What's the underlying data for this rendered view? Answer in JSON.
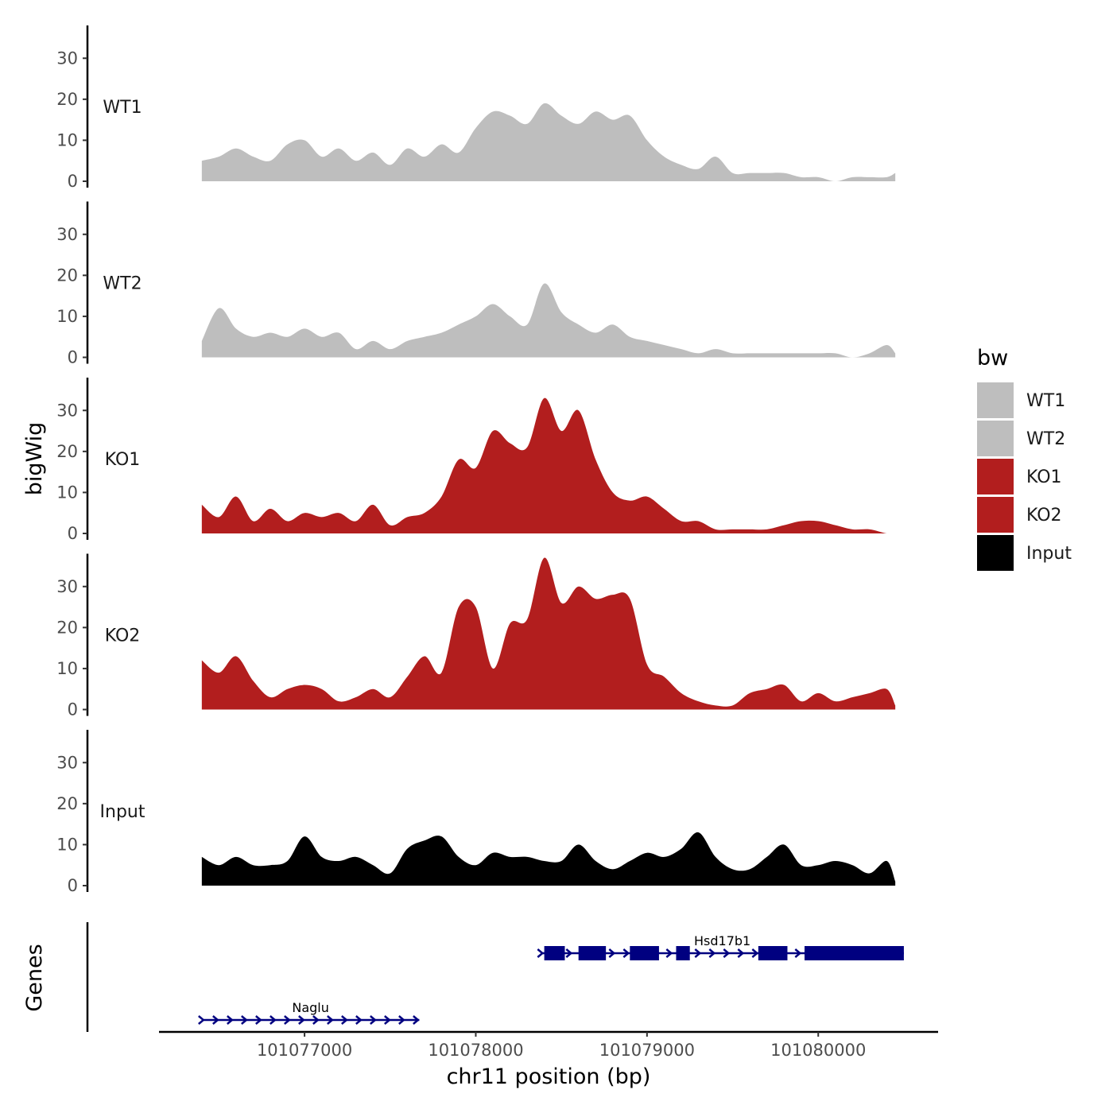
{
  "chart_data": {
    "type": "area",
    "title": "",
    "xlabel": "chr11 position (bp)",
    "ylabel": "bigWig",
    "genes_label": "Genes",
    "xlim": [
      101076150,
      101080700
    ],
    "ylim": [
      0,
      38
    ],
    "x_ticks": [
      101077000,
      101078000,
      101079000,
      101080000
    ],
    "y_ticks": [
      0,
      10,
      20,
      30
    ],
    "legend": {
      "title": "bw",
      "entries": [
        {
          "name": "WT1",
          "color": "#bebebe"
        },
        {
          "name": "WT2",
          "color": "#bebebe"
        },
        {
          "name": "KO1",
          "color": "#b21e1e"
        },
        {
          "name": "KO2",
          "color": "#b21e1e"
        },
        {
          "name": "Input",
          "color": "#000000"
        }
      ]
    },
    "x": [
      101076400,
      101076500,
      101076600,
      101076700,
      101076800,
      101076900,
      101077000,
      101077100,
      101077200,
      101077300,
      101077400,
      101077500,
      101077600,
      101077700,
      101077800,
      101077900,
      101078000,
      101078100,
      101078200,
      101078300,
      101078400,
      101078500,
      101078600,
      101078700,
      101078800,
      101078900,
      101079000,
      101079100,
      101079200,
      101079300,
      101079400,
      101079500,
      101079600,
      101079700,
      101079800,
      101079900,
      101080000,
      101080100,
      101080200,
      101080300,
      101080400,
      101080450
    ],
    "series": [
      {
        "name": "WT1",
        "color": "#bebebe",
        "values": [
          5,
          6,
          8,
          6,
          5,
          9,
          10,
          6,
          8,
          5,
          7,
          4,
          8,
          6,
          9,
          7,
          13,
          17,
          16,
          14,
          19,
          16,
          14,
          17,
          15,
          16,
          10,
          6,
          4,
          3,
          6,
          2,
          2,
          2,
          2,
          1,
          1,
          0,
          1,
          1,
          1,
          2
        ]
      },
      {
        "name": "WT2",
        "color": "#bebebe",
        "values": [
          4,
          12,
          7,
          5,
          6,
          5,
          7,
          5,
          6,
          2,
          4,
          2,
          4,
          5,
          6,
          8,
          10,
          13,
          10,
          8,
          18,
          11,
          8,
          6,
          8,
          5,
          4,
          3,
          2,
          1,
          2,
          1,
          1,
          1,
          1,
          1,
          1,
          1,
          0,
          1,
          3,
          1
        ]
      },
      {
        "name": "KO1",
        "color": "#b21e1e",
        "values": [
          7,
          4,
          9,
          3,
          6,
          3,
          5,
          4,
          5,
          3,
          7,
          2,
          4,
          5,
          9,
          18,
          16,
          25,
          22,
          21,
          33,
          25,
          30,
          18,
          10,
          8,
          9,
          6,
          3,
          3,
          1,
          1,
          1,
          1,
          2,
          3,
          3,
          2,
          1,
          1,
          0,
          0
        ]
      },
      {
        "name": "KO2",
        "color": "#b21e1e",
        "values": [
          12,
          9,
          13,
          7,
          3,
          5,
          6,
          5,
          2,
          3,
          5,
          3,
          8,
          13,
          9,
          25,
          25,
          10,
          21,
          22,
          37,
          26,
          30,
          27,
          28,
          27,
          11,
          8,
          4,
          2,
          1,
          1,
          4,
          5,
          6,
          2,
          4,
          2,
          3,
          4,
          5,
          1
        ]
      },
      {
        "name": "Input",
        "color": "#000000",
        "values": [
          7,
          5,
          7,
          5,
          5,
          6,
          12,
          7,
          6,
          7,
          5,
          3,
          9,
          11,
          12,
          7,
          5,
          8,
          7,
          7,
          6,
          6,
          10,
          6,
          4,
          6,
          8,
          7,
          9,
          13,
          7,
          4,
          4,
          7,
          10,
          5,
          5,
          6,
          5,
          3,
          6,
          1
        ]
      }
    ],
    "genes": [
      {
        "name": "Naglu",
        "strand": "+",
        "start": 101076400,
        "end": 101077670,
        "exons": []
      },
      {
        "name": "Hsd17b1",
        "strand": "+",
        "start": 101078380,
        "end": 101080500,
        "exons": [
          [
            101078400,
            101078520
          ],
          [
            101078600,
            101078760
          ],
          [
            101078900,
            101079070
          ],
          [
            101079170,
            101079250
          ],
          [
            101079650,
            101079820
          ],
          [
            101079920,
            101080500
          ]
        ]
      }
    ]
  }
}
